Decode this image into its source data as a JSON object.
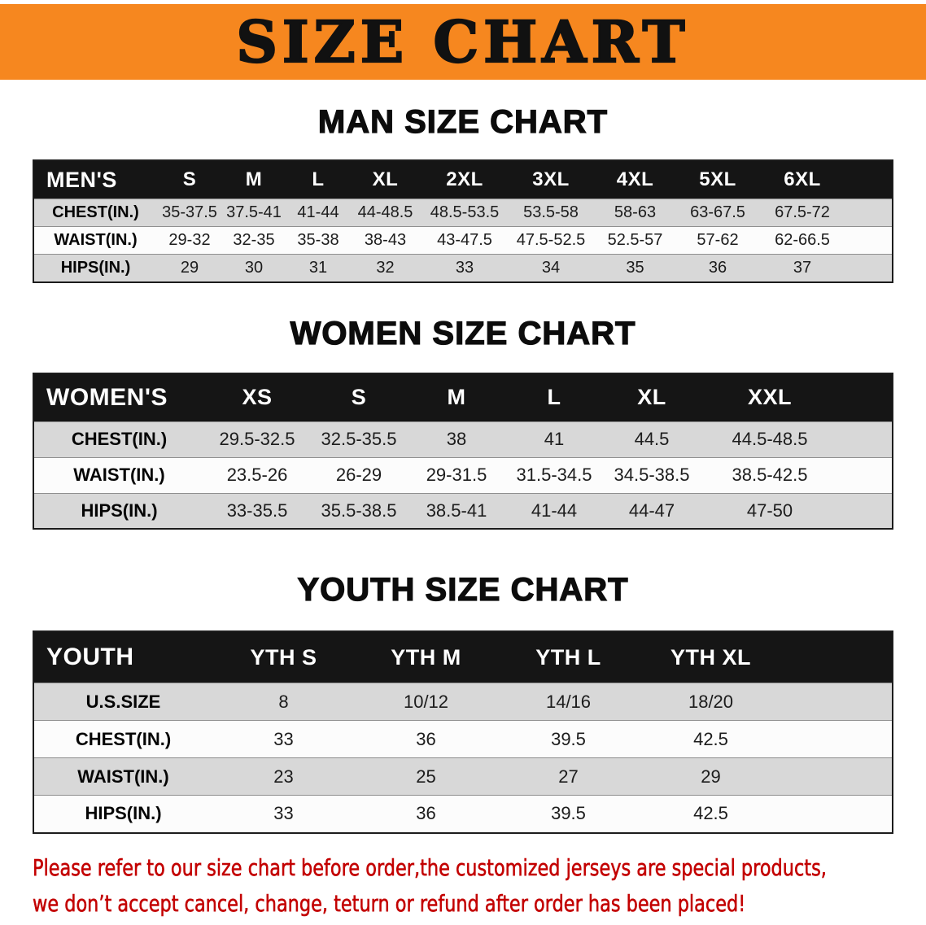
{
  "banner": {
    "title": "SIZE CHART",
    "bg_color": "#F6871F",
    "text_color": "#111111"
  },
  "sections": [
    {
      "id": "men",
      "heading": "MAN SIZE CHART",
      "table": {
        "corner": "MEN'S",
        "columns": [
          "S",
          "M",
          "L",
          "XL",
          "2XL",
          "3XL",
          "4XL",
          "5XL",
          "6XL"
        ],
        "rows": [
          {
            "label": "CHEST(IN.)",
            "values": [
              "35-37.5",
              "37.5-41",
              "41-44",
              "44-48.5",
              "48.5-53.5",
              "53.5-58",
              "58-63",
              "63-67.5",
              "67.5-72"
            ]
          },
          {
            "label": "WAIST(IN.)",
            "values": [
              "29-32",
              "32-35",
              "35-38",
              "38-43",
              "43-47.5",
              "47.5-52.5",
              "52.5-57",
              "57-62",
              "62-66.5"
            ]
          },
          {
            "label": "HIPS(IN.)",
            "values": [
              "29",
              "30",
              "31",
              "32",
              "33",
              "34",
              "35",
              "36",
              "37"
            ]
          }
        ]
      }
    },
    {
      "id": "women",
      "heading": "WOMEN SIZE CHART",
      "table": {
        "corner": "WOMEN'S",
        "columns": [
          "XS",
          "S",
          "M",
          "L",
          "XL",
          "XXL"
        ],
        "rows": [
          {
            "label": "CHEST(IN.)",
            "values": [
              "29.5-32.5",
              "32.5-35.5",
              "38",
              "41",
              "44.5",
              "44.5-48.5"
            ]
          },
          {
            "label": "WAIST(IN.)",
            "values": [
              "23.5-26",
              "26-29",
              "29-31.5",
              "31.5-34.5",
              "34.5-38.5",
              "38.5-42.5"
            ]
          },
          {
            "label": "HIPS(IN.)",
            "values": [
              "33-35.5",
              "35.5-38.5",
              "38.5-41",
              "41-44",
              "44-47",
              "47-50"
            ]
          }
        ]
      }
    },
    {
      "id": "youth",
      "heading": "YOUTH SIZE CHART",
      "table": {
        "corner": "YOUTH",
        "columns": [
          "YTH S",
          "YTH M",
          "YTH L",
          "YTH XL"
        ],
        "rows": [
          {
            "label": "U.S.SIZE",
            "values": [
              "8",
              "10/12",
              "14/16",
              "18/20"
            ]
          },
          {
            "label": "CHEST(IN.)",
            "values": [
              "33",
              "36",
              "39.5",
              "42.5"
            ]
          },
          {
            "label": "WAIST(IN.)",
            "values": [
              "23",
              "25",
              "27",
              "29"
            ]
          },
          {
            "label": "HIPS(IN.)",
            "values": [
              "33",
              "36",
              "39.5",
              "42.5"
            ]
          }
        ]
      }
    }
  ],
  "footer": {
    "text_color": "#C30000",
    "lines": [
      "Please refer to our size chart before order,the customized jerseys are special products,",
      "we don’t accept cancel, change, teturn or refund after order has been placed!"
    ]
  }
}
